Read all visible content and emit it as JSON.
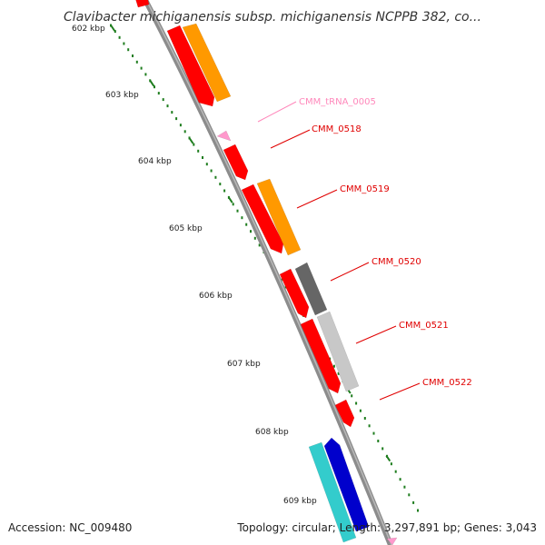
{
  "title": "Clavibacter michiganensis subsp. michiganensis NCPPB 382, co...",
  "footer": {
    "accession": "Accession: NC_009480",
    "summary": "Topology: circular; Length: 3,297,891 bp; Genes: 3,043"
  },
  "ruler": {
    "unit": "kbp",
    "ticks": [
      "602 kbp",
      "603 kbp",
      "604 kbp",
      "605 kbp",
      "606 kbp",
      "607 kbp",
      "608 kbp",
      "609 kbp"
    ],
    "color": "#1e7d1e"
  },
  "backbone_color": "#8c8c8c",
  "features": [
    {
      "id": "CMM_0517",
      "label": "",
      "color": "#ff0000",
      "strand": "outer"
    },
    {
      "id": "CMM_0517b",
      "label": "",
      "color": "#ff9900",
      "strand": "inner"
    },
    {
      "id": "CMM_tRNA_0005",
      "label": "CMM_tRNA_0005",
      "color": "#ff99cc",
      "label_color": "#ff88bb",
      "strand": "outer"
    },
    {
      "id": "CMM_0518",
      "label": "CMM_0518",
      "color": "#ff0000",
      "label_color": "#e00000",
      "strand": "outer"
    },
    {
      "id": "CMM_0519",
      "label": "CMM_0519",
      "color": "#ff0000",
      "label_color": "#e00000",
      "strand": "outer"
    },
    {
      "id": "CMM_0519b",
      "label": "",
      "color": "#ff9900",
      "strand": "inner"
    },
    {
      "id": "CMM_0520",
      "label": "CMM_0520",
      "color": "#ff0000",
      "label_color": "#e00000",
      "strand": "outer"
    },
    {
      "id": "CMM_0520b",
      "label": "",
      "color": "#666666",
      "strand": "inner"
    },
    {
      "id": "CMM_0521",
      "label": "CMM_0521",
      "color": "#ff0000",
      "label_color": "#e00000",
      "strand": "outer"
    },
    {
      "id": "CMM_0521b",
      "label": "",
      "color": "#c8c8c8",
      "strand": "inner"
    },
    {
      "id": "CMM_0522",
      "label": "CMM_0522",
      "color": "#ff0000",
      "label_color": "#e00000",
      "strand": "outer"
    },
    {
      "id": "CMM_0523",
      "label": "",
      "color": "#33cccc",
      "strand": "outer"
    },
    {
      "id": "CMM_0524",
      "label": "",
      "color": "#0000cc",
      "strand": "inner"
    },
    {
      "id": "CMM_0525",
      "label": "",
      "color": "#ff99cc",
      "strand": "inner"
    }
  ]
}
